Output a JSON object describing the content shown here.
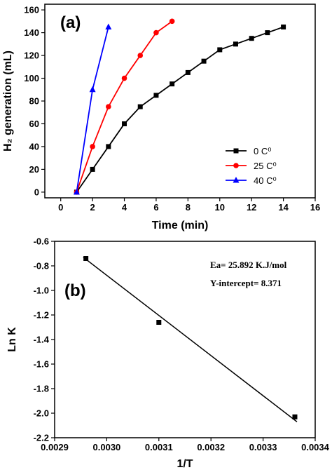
{
  "chart_data": [
    {
      "type": "line",
      "panel_label": "(a)",
      "xlabel": "Time (min)",
      "ylabel": "H₂ generation (mL)",
      "xlim": [
        -1,
        16
      ],
      "ylim": [
        -5,
        165
      ],
      "xticks": [
        0,
        2,
        4,
        6,
        8,
        10,
        12,
        14,
        16
      ],
      "yticks": [
        0,
        20,
        40,
        60,
        80,
        100,
        120,
        140,
        160
      ],
      "legend_position": "bottom-right",
      "series": [
        {
          "name": "0 C⁰",
          "color": "#000000",
          "marker": "square",
          "x": [
            1,
            2,
            3,
            4,
            5,
            6,
            7,
            8,
            9,
            10,
            11,
            12,
            13,
            14
          ],
          "y": [
            0,
            20,
            40,
            60,
            75,
            85,
            95,
            105,
            115,
            125,
            130,
            135,
            140,
            145
          ]
        },
        {
          "name": "25 C⁰",
          "color": "#ff0000",
          "marker": "circle",
          "x": [
            1,
            2,
            3,
            4,
            5,
            6,
            7
          ],
          "y": [
            0,
            40,
            75,
            100,
            120,
            140,
            150
          ]
        },
        {
          "name": "40 C⁰",
          "color": "#0000ff",
          "marker": "triangle",
          "x": [
            1,
            2,
            3
          ],
          "y": [
            0,
            90,
            145
          ]
        }
      ]
    },
    {
      "type": "scatter",
      "panel_label": "(b)",
      "xlabel": "1/T",
      "ylabel": "Ln K",
      "xlim": [
        0.0029,
        0.0034
      ],
      "ylim": [
        -2.2,
        -0.6
      ],
      "xticks": [
        "0.0029",
        "0.0030",
        "0.0031",
        "0.0032",
        "0.0033",
        "0.0034"
      ],
      "yticks": [
        "-0.6",
        "-0.8",
        "-1.0",
        "-1.2",
        "-1.4",
        "-1.6",
        "-1.8",
        "-2.0",
        "-2.2"
      ],
      "annotations": [
        "Ea= 25.892 K.J/mol",
        "Y-intercept= 8.371"
      ],
      "points": {
        "x": [
          0.00296,
          0.0031,
          0.003361
        ],
        "y": [
          -0.74,
          -1.26,
          -2.03
        ]
      },
      "fit_line": {
        "x": [
          0.002955,
          0.003365
        ],
        "y": [
          -0.73,
          -2.07
        ]
      }
    }
  ]
}
